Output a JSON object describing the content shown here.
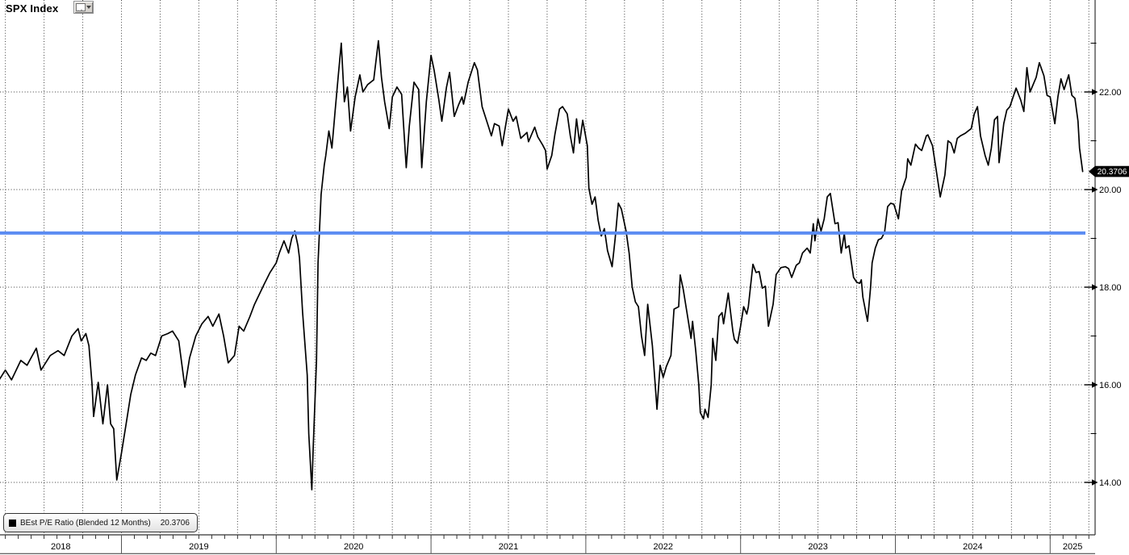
{
  "header": {
    "title": "SPX Index"
  },
  "legend": {
    "label": "BEst P/E Ratio (Blended 12 Months)",
    "value": "20.3706"
  },
  "colors": {
    "background": "#ffffff",
    "series": "#000000",
    "avg_line": "#5b8cf2",
    "grid": "#3c3c3c",
    "axis": "#333333",
    "badge_bg": "#000000",
    "badge_text": "#ffffff",
    "label_text": "#000000"
  },
  "chart_data": {
    "type": "line",
    "title": "SPX Index BEst P/E Ratio (Blended 12 Months)",
    "xlabel": "",
    "ylabel": "",
    "x_range": [
      2018.21,
      2025.29
    ],
    "y_range": [
      12.9,
      23.9
    ],
    "x_year_labels": [
      "2018",
      "2019",
      "2020",
      "2021",
      "2022",
      "2023",
      "2024",
      "2025"
    ],
    "x_year_values": [
      2018,
      2019,
      2020,
      2021,
      2022,
      2023,
      2024,
      2025
    ],
    "y_ticks": [
      14,
      16,
      18,
      16,
      14
    ],
    "y_major_ticks": [
      14,
      16,
      18,
      20,
      22
    ],
    "y_major_tick_labels": [
      "14.00",
      "16.00",
      "18.00",
      "20.00",
      "22.00"
    ],
    "y_minor_ticks": [
      15,
      17,
      19,
      21,
      23
    ],
    "grid": "dotted; vertical quarterly, horizontal at major y ticks",
    "legend_position": "bottom-left",
    "last_value": 20.3706,
    "last_value_label": "20.3706",
    "avg_line_value": 19.11,
    "series": [
      {
        "name": "BEst P/E Ratio (Blended 12 Months)",
        "color": "#000000",
        "points": [
          [
            2018.21,
            16.1
          ],
          [
            2018.25,
            16.3
          ],
          [
            2018.29,
            16.1
          ],
          [
            2018.35,
            16.5
          ],
          [
            2018.39,
            16.4
          ],
          [
            2018.45,
            16.75
          ],
          [
            2018.48,
            16.3
          ],
          [
            2018.54,
            16.6
          ],
          [
            2018.59,
            16.7
          ],
          [
            2018.63,
            16.6
          ],
          [
            2018.68,
            17.0
          ],
          [
            2018.72,
            17.15
          ],
          [
            2018.74,
            16.9
          ],
          [
            2018.77,
            17.05
          ],
          [
            2018.79,
            16.8
          ],
          [
            2018.81,
            16.0
          ],
          [
            2018.82,
            15.35
          ],
          [
            2018.85,
            16.05
          ],
          [
            2018.88,
            15.2
          ],
          [
            2018.91,
            16.0
          ],
          [
            2018.93,
            15.2
          ],
          [
            2018.95,
            15.1
          ],
          [
            2018.97,
            14.05
          ],
          [
            2019.0,
            14.6
          ],
          [
            2019.03,
            15.2
          ],
          [
            2019.06,
            15.8
          ],
          [
            2019.09,
            16.2
          ],
          [
            2019.13,
            16.55
          ],
          [
            2019.16,
            16.5
          ],
          [
            2019.19,
            16.65
          ],
          [
            2019.22,
            16.6
          ],
          [
            2019.26,
            17.0
          ],
          [
            2019.3,
            17.05
          ],
          [
            2019.33,
            17.1
          ],
          [
            2019.37,
            16.9
          ],
          [
            2019.41,
            15.95
          ],
          [
            2019.44,
            16.55
          ],
          [
            2019.48,
            17.0
          ],
          [
            2019.52,
            17.25
          ],
          [
            2019.56,
            17.4
          ],
          [
            2019.59,
            17.2
          ],
          [
            2019.63,
            17.45
          ],
          [
            2019.66,
            17.0
          ],
          [
            2019.69,
            16.45
          ],
          [
            2019.73,
            16.6
          ],
          [
            2019.76,
            17.2
          ],
          [
            2019.79,
            17.1
          ],
          [
            2019.83,
            17.4
          ],
          [
            2019.86,
            17.65
          ],
          [
            2019.89,
            17.85
          ],
          [
            2019.92,
            18.05
          ],
          [
            2019.96,
            18.3
          ],
          [
            2020.0,
            18.5
          ],
          [
            2020.02,
            18.7
          ],
          [
            2020.05,
            18.95
          ],
          [
            2020.08,
            18.7
          ],
          [
            2020.1,
            19.0
          ],
          [
            2020.12,
            19.15
          ],
          [
            2020.14,
            18.85
          ],
          [
            2020.15,
            18.6
          ],
          [
            2020.17,
            17.5
          ],
          [
            2020.2,
            16.2
          ],
          [
            2020.21,
            15.0
          ],
          [
            2020.23,
            13.85
          ],
          [
            2020.24,
            14.8
          ],
          [
            2020.26,
            16.5
          ],
          [
            2020.27,
            18.5
          ],
          [
            2020.29,
            19.9
          ],
          [
            2020.31,
            20.5
          ],
          [
            2020.32,
            20.7
          ],
          [
            2020.34,
            21.2
          ],
          [
            2020.36,
            20.85
          ],
          [
            2020.38,
            21.6
          ],
          [
            2020.4,
            22.3
          ],
          [
            2020.42,
            23.0
          ],
          [
            2020.44,
            21.8
          ],
          [
            2020.46,
            22.1
          ],
          [
            2020.48,
            21.2
          ],
          [
            2020.51,
            21.9
          ],
          [
            2020.54,
            22.35
          ],
          [
            2020.56,
            22.0
          ],
          [
            2020.59,
            22.15
          ],
          [
            2020.61,
            22.2
          ],
          [
            2020.63,
            22.25
          ],
          [
            2020.66,
            23.05
          ],
          [
            2020.68,
            22.3
          ],
          [
            2020.7,
            21.8
          ],
          [
            2020.73,
            21.25
          ],
          [
            2020.75,
            21.9
          ],
          [
            2020.78,
            22.1
          ],
          [
            2020.81,
            21.95
          ],
          [
            2020.84,
            20.45
          ],
          [
            2020.86,
            21.3
          ],
          [
            2020.89,
            22.2
          ],
          [
            2020.92,
            22.05
          ],
          [
            2020.94,
            20.45
          ],
          [
            2020.97,
            21.8
          ],
          [
            2021.0,
            22.75
          ],
          [
            2021.02,
            22.45
          ],
          [
            2021.05,
            21.85
          ],
          [
            2021.07,
            21.4
          ],
          [
            2021.1,
            22.1
          ],
          [
            2021.12,
            22.4
          ],
          [
            2021.15,
            21.5
          ],
          [
            2021.18,
            21.75
          ],
          [
            2021.2,
            21.9
          ],
          [
            2021.21,
            21.75
          ],
          [
            2021.24,
            22.2
          ],
          [
            2021.28,
            22.6
          ],
          [
            2021.3,
            22.45
          ],
          [
            2021.33,
            21.7
          ],
          [
            2021.37,
            21.3
          ],
          [
            2021.39,
            21.1
          ],
          [
            2021.41,
            21.35
          ],
          [
            2021.44,
            21.3
          ],
          [
            2021.46,
            20.9
          ],
          [
            2021.5,
            21.65
          ],
          [
            2021.53,
            21.4
          ],
          [
            2021.55,
            21.5
          ],
          [
            2021.58,
            21.05
          ],
          [
            2021.62,
            21.17
          ],
          [
            2021.63,
            20.98
          ],
          [
            2021.67,
            21.28
          ],
          [
            2021.69,
            21.08
          ],
          [
            2021.72,
            20.92
          ],
          [
            2021.74,
            20.8
          ],
          [
            2021.75,
            20.42
          ],
          [
            2021.78,
            20.7
          ],
          [
            2021.8,
            21.12
          ],
          [
            2021.83,
            21.65
          ],
          [
            2021.85,
            21.7
          ],
          [
            2021.88,
            21.55
          ],
          [
            2021.9,
            21.1
          ],
          [
            2021.92,
            20.75
          ],
          [
            2021.94,
            21.45
          ],
          [
            2021.96,
            20.95
          ],
          [
            2021.98,
            21.42
          ],
          [
            2022.01,
            20.9
          ],
          [
            2022.02,
            20.03
          ],
          [
            2022.04,
            19.7
          ],
          [
            2022.06,
            19.85
          ],
          [
            2022.08,
            19.37
          ],
          [
            2022.1,
            19.05
          ],
          [
            2022.12,
            19.2
          ],
          [
            2022.14,
            18.75
          ],
          [
            2022.17,
            18.42
          ],
          [
            2022.19,
            19.0
          ],
          [
            2022.21,
            19.72
          ],
          [
            2022.23,
            19.6
          ],
          [
            2022.26,
            19.15
          ],
          [
            2022.28,
            18.7
          ],
          [
            2022.3,
            18.0
          ],
          [
            2022.32,
            17.7
          ],
          [
            2022.34,
            17.6
          ],
          [
            2022.36,
            17.0
          ],
          [
            2022.38,
            16.6
          ],
          [
            2022.4,
            17.65
          ],
          [
            2022.43,
            16.8
          ],
          [
            2022.46,
            15.5
          ],
          [
            2022.48,
            16.4
          ],
          [
            2022.5,
            16.15
          ],
          [
            2022.52,
            16.37
          ],
          [
            2022.55,
            16.6
          ],
          [
            2022.57,
            17.55
          ],
          [
            2022.6,
            17.6
          ],
          [
            2022.61,
            18.25
          ],
          [
            2022.63,
            17.95
          ],
          [
            2022.66,
            17.35
          ],
          [
            2022.68,
            16.95
          ],
          [
            2022.69,
            17.3
          ],
          [
            2022.71,
            16.7
          ],
          [
            2022.73,
            16.0
          ],
          [
            2022.74,
            15.43
          ],
          [
            2022.76,
            15.3
          ],
          [
            2022.77,
            15.5
          ],
          [
            2022.79,
            15.33
          ],
          [
            2022.81,
            16.0
          ],
          [
            2022.82,
            16.95
          ],
          [
            2022.84,
            16.5
          ],
          [
            2022.86,
            17.4
          ],
          [
            2022.88,
            17.48
          ],
          [
            2022.89,
            17.25
          ],
          [
            2022.92,
            17.88
          ],
          [
            2022.95,
            17.1
          ],
          [
            2022.96,
            16.93
          ],
          [
            2022.98,
            16.85
          ],
          [
            2023.0,
            17.2
          ],
          [
            2023.02,
            17.6
          ],
          [
            2023.04,
            17.45
          ],
          [
            2023.05,
            17.6
          ],
          [
            2023.08,
            18.47
          ],
          [
            2023.1,
            18.3
          ],
          [
            2023.12,
            18.32
          ],
          [
            2023.14,
            17.98
          ],
          [
            2023.16,
            18.02
          ],
          [
            2023.18,
            17.2
          ],
          [
            2023.21,
            17.65
          ],
          [
            2023.23,
            18.26
          ],
          [
            2023.26,
            18.4
          ],
          [
            2023.29,
            18.42
          ],
          [
            2023.31,
            18.38
          ],
          [
            2023.33,
            18.2
          ],
          [
            2023.36,
            18.45
          ],
          [
            2023.38,
            18.5
          ],
          [
            2023.4,
            18.7
          ],
          [
            2023.43,
            18.8
          ],
          [
            2023.45,
            18.7
          ],
          [
            2023.47,
            19.3
          ],
          [
            2023.48,
            18.95
          ],
          [
            2023.5,
            19.4
          ],
          [
            2023.52,
            19.15
          ],
          [
            2023.54,
            19.4
          ],
          [
            2023.56,
            19.85
          ],
          [
            2023.58,
            19.92
          ],
          [
            2023.61,
            19.3
          ],
          [
            2023.63,
            19.32
          ],
          [
            2023.65,
            18.7
          ],
          [
            2023.67,
            19.1
          ],
          [
            2023.68,
            18.8
          ],
          [
            2023.7,
            18.85
          ],
          [
            2023.73,
            18.2
          ],
          [
            2023.75,
            18.1
          ],
          [
            2023.77,
            18.08
          ],
          [
            2023.78,
            18.15
          ],
          [
            2023.79,
            17.8
          ],
          [
            2023.82,
            17.3
          ],
          [
            2023.84,
            18.0
          ],
          [
            2023.85,
            18.5
          ],
          [
            2023.87,
            18.8
          ],
          [
            2023.89,
            18.97
          ],
          [
            2023.91,
            19.0
          ],
          [
            2023.93,
            19.12
          ],
          [
            2023.95,
            19.65
          ],
          [
            2023.97,
            19.72
          ],
          [
            2023.99,
            19.7
          ],
          [
            2024.02,
            19.4
          ],
          [
            2024.04,
            19.97
          ],
          [
            2024.07,
            20.25
          ],
          [
            2024.08,
            20.63
          ],
          [
            2024.1,
            20.5
          ],
          [
            2024.13,
            20.93
          ],
          [
            2024.15,
            20.85
          ],
          [
            2024.17,
            20.8
          ],
          [
            2024.2,
            21.1
          ],
          [
            2024.21,
            21.12
          ],
          [
            2024.24,
            20.9
          ],
          [
            2024.27,
            20.27
          ],
          [
            2024.29,
            19.85
          ],
          [
            2024.32,
            20.3
          ],
          [
            2024.34,
            21.0
          ],
          [
            2024.36,
            20.95
          ],
          [
            2024.38,
            20.75
          ],
          [
            2024.4,
            21.05
          ],
          [
            2024.42,
            21.1
          ],
          [
            2024.45,
            21.15
          ],
          [
            2024.47,
            21.2
          ],
          [
            2024.49,
            21.25
          ],
          [
            2024.51,
            21.55
          ],
          [
            2024.53,
            21.7
          ],
          [
            2024.55,
            21.1
          ],
          [
            2024.58,
            20.7
          ],
          [
            2024.6,
            20.5
          ],
          [
            2024.62,
            20.85
          ],
          [
            2024.64,
            21.43
          ],
          [
            2024.66,
            21.5
          ],
          [
            2024.67,
            20.55
          ],
          [
            2024.7,
            21.35
          ],
          [
            2024.72,
            21.63
          ],
          [
            2024.74,
            21.7
          ],
          [
            2024.78,
            22.08
          ],
          [
            2024.81,
            21.83
          ],
          [
            2024.83,
            21.6
          ],
          [
            2024.85,
            22.5
          ],
          [
            2024.87,
            22.0
          ],
          [
            2024.91,
            22.3
          ],
          [
            2024.93,
            22.6
          ],
          [
            2024.96,
            22.33
          ],
          [
            2024.98,
            21.93
          ],
          [
            2025.0,
            21.9
          ],
          [
            2025.03,
            21.35
          ],
          [
            2025.05,
            21.9
          ],
          [
            2025.07,
            22.27
          ],
          [
            2025.09,
            22.05
          ],
          [
            2025.12,
            22.35
          ],
          [
            2025.14,
            21.93
          ],
          [
            2025.16,
            21.87
          ],
          [
            2025.18,
            21.4
          ],
          [
            2025.19,
            20.85
          ],
          [
            2025.21,
            20.37
          ]
        ]
      }
    ]
  }
}
